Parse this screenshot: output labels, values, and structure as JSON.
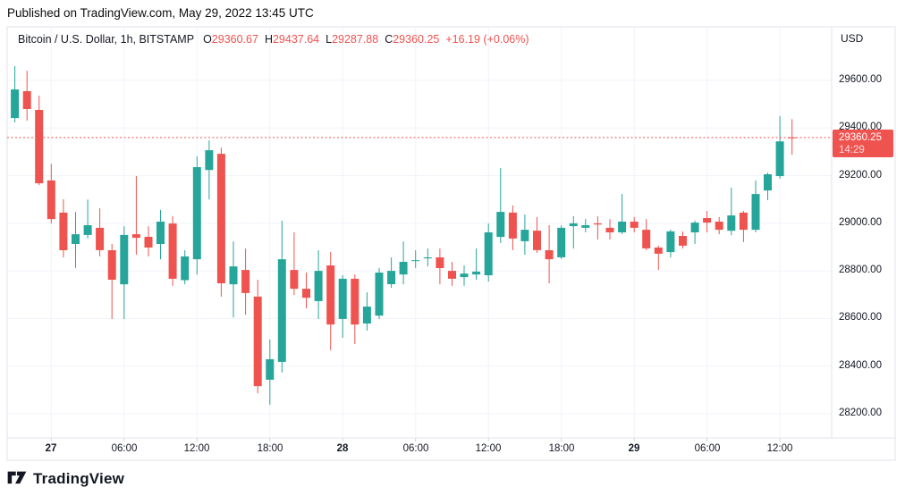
{
  "published_line": "Published on TradingView.com, May 29, 2022 13:45 UTC",
  "legend": {
    "symbol": "Bitcoin / U.S. Dollar, 1h, BITSTAMP",
    "o_label": "O",
    "o": "29360.67",
    "h_label": "H",
    "h": "29437.64",
    "l_label": "L",
    "l": "29287.88",
    "c_label": "C",
    "c": "29360.25",
    "change": "+16.19 (+0.06%)"
  },
  "price_axis": {
    "currency": "USD",
    "ticks": [
      {
        "value": 29600,
        "text": "29600.00"
      },
      {
        "value": 29400,
        "text": "29400.00"
      },
      {
        "value": 29200,
        "text": "29200.00"
      },
      {
        "value": 29000,
        "text": "29000.00"
      },
      {
        "value": 28800,
        "text": "28800.00"
      },
      {
        "value": 28600,
        "text": "28600.00"
      },
      {
        "value": 28400,
        "text": "28400.00"
      },
      {
        "value": 28200,
        "text": "28200.00"
      }
    ],
    "badge": {
      "price": "29360.25",
      "countdown": "14:29"
    }
  },
  "time_axis": {
    "ticks": [
      {
        "t": "2022-05-27T00:00",
        "text": "27",
        "bold": true
      },
      {
        "t": "2022-05-27T06:00",
        "text": "06:00",
        "bold": false
      },
      {
        "t": "2022-05-27T12:00",
        "text": "12:00",
        "bold": false
      },
      {
        "t": "2022-05-27T18:00",
        "text": "18:00",
        "bold": false
      },
      {
        "t": "2022-05-28T00:00",
        "text": "28",
        "bold": true
      },
      {
        "t": "2022-05-28T06:00",
        "text": "06:00",
        "bold": false
      },
      {
        "t": "2022-05-28T12:00",
        "text": "12:00",
        "bold": false
      },
      {
        "t": "2022-05-28T18:00",
        "text": "18:00",
        "bold": false
      },
      {
        "t": "2022-05-29T00:00",
        "text": "29",
        "bold": true
      },
      {
        "t": "2022-05-29T06:00",
        "text": "06:00",
        "bold": false
      },
      {
        "t": "2022-05-29T12:00",
        "text": "12:00",
        "bold": false
      }
    ]
  },
  "footer": {
    "brand": "TradingView"
  },
  "colors": {
    "up": "#26a69a",
    "down": "#ef5350",
    "accent": "#ef5350",
    "text": "#131722",
    "grid": "#f0f3fa",
    "border": "#e0e3eb",
    "tick": "#d1d4dc",
    "badge_bg": "#ef5350",
    "badge_text": "#ffffff"
  },
  "chart_data": {
    "type": "candlestick",
    "title": "Bitcoin / U.S. Dollar, 1h, BITSTAMP",
    "interval": "1h",
    "ylabel": "USD",
    "ylim": [
      28130,
      29720
    ],
    "grid": true,
    "current_price": 29360.25,
    "current_price_line": "dotted-red",
    "countdown": "14:29",
    "last_bar": {
      "open": 29360.67,
      "high": 29437.64,
      "low": 29287.88,
      "close": 29360.25,
      "change": "+16.19 (+0.06%)"
    },
    "candle_format": [
      "time",
      "open",
      "high",
      "low",
      "close"
    ],
    "candles": [
      [
        "2022-05-26T20:00",
        29450,
        29600,
        29440,
        29580
      ],
      [
        "2022-05-26T21:00",
        29442,
        29660,
        29424,
        29562
      ],
      [
        "2022-05-26T22:00",
        29555,
        29641,
        29431,
        29480
      ],
      [
        "2022-05-26T23:00",
        29476,
        29536,
        29161,
        29168
      ],
      [
        "2022-05-27T00:00",
        29180,
        29250,
        28999,
        29018
      ],
      [
        "2022-05-27T01:00",
        29045,
        29101,
        28857,
        28887
      ],
      [
        "2022-05-27T02:00",
        28913,
        29048,
        28812,
        28954
      ],
      [
        "2022-05-27T03:00",
        28951,
        29100,
        28936,
        28992
      ],
      [
        "2022-05-27T04:00",
        28981,
        29063,
        28861,
        28887
      ],
      [
        "2022-05-27T05:00",
        28887,
        28913,
        28598,
        28763
      ],
      [
        "2022-05-27T06:00",
        28744,
        28988,
        28598,
        28951
      ],
      [
        "2022-05-27T07:00",
        28954,
        29198,
        28868,
        28939
      ],
      [
        "2022-05-27T08:00",
        28943,
        28988,
        28861,
        28898
      ],
      [
        "2022-05-27T09:00",
        28913,
        29056,
        28849,
        29007
      ],
      [
        "2022-05-27T10:00",
        28999,
        29030,
        28737,
        28767
      ],
      [
        "2022-05-27T11:00",
        28761,
        28887,
        28744,
        28861
      ],
      [
        "2022-05-27T12:00",
        28849,
        29281,
        28785,
        29236
      ],
      [
        "2022-05-27T13:00",
        29224,
        29348,
        29100,
        29307
      ],
      [
        "2022-05-27T14:00",
        29292,
        29318,
        28692,
        28748
      ],
      [
        "2022-05-27T15:00",
        28744,
        28924,
        28605,
        28819
      ],
      [
        "2022-05-27T16:00",
        28804,
        28894,
        28616,
        28707
      ],
      [
        "2022-05-27T17:00",
        28692,
        28763,
        28286,
        28316
      ],
      [
        "2022-05-27T18:00",
        28343,
        28512,
        28238,
        28429
      ],
      [
        "2022-05-27T19:00",
        28418,
        29011,
        28373,
        28849
      ],
      [
        "2022-05-27T20:00",
        28804,
        28962,
        28699,
        28725
      ],
      [
        "2022-05-27T21:00",
        28725,
        28793,
        28643,
        28687
      ],
      [
        "2022-05-27T22:00",
        28673,
        28887,
        28598,
        28800
      ],
      [
        "2022-05-27T23:00",
        28823,
        28879,
        28466,
        28575
      ],
      [
        "2022-05-28T00:00",
        28598,
        28782,
        28519,
        28767
      ],
      [
        "2022-05-28T01:00",
        28767,
        28785,
        28493,
        28575
      ],
      [
        "2022-05-28T02:00",
        28579,
        28710,
        28549,
        28650
      ],
      [
        "2022-05-28T03:00",
        28612,
        28812,
        28598,
        28793
      ],
      [
        "2022-05-28T04:00",
        28744,
        28857,
        28729,
        28800
      ],
      [
        "2022-05-28T05:00",
        28785,
        28924,
        28744,
        28838
      ],
      [
        "2022-05-28T06:00",
        28842,
        28887,
        28812,
        28845
      ],
      [
        "2022-05-28T07:00",
        28853,
        28894,
        28819,
        28857
      ],
      [
        "2022-05-28T08:00",
        28857,
        28894,
        28744,
        28812
      ],
      [
        "2022-05-28T09:00",
        28800,
        28838,
        28737,
        28767
      ],
      [
        "2022-05-28T10:00",
        28774,
        28823,
        28737,
        28789
      ],
      [
        "2022-05-28T11:00",
        28785,
        28894,
        28763,
        28797
      ],
      [
        "2022-05-28T12:00",
        28782,
        28999,
        28755,
        28962
      ],
      [
        "2022-05-28T13:00",
        28943,
        29232,
        28917,
        29048
      ],
      [
        "2022-05-28T14:00",
        29045,
        29075,
        28887,
        28936
      ],
      [
        "2022-05-28T15:00",
        28925,
        29037,
        28868,
        28973
      ],
      [
        "2022-05-28T16:00",
        28969,
        29026,
        28876,
        28887
      ],
      [
        "2022-05-28T17:00",
        28887,
        28992,
        28748,
        28849
      ],
      [
        "2022-05-28T18:00",
        28857,
        28992,
        28850,
        28981
      ],
      [
        "2022-05-28T19:00",
        28988,
        29030,
        28894,
        29000
      ],
      [
        "2022-05-28T20:00",
        28981,
        29018,
        28962,
        28992
      ],
      [
        "2022-05-28T21:00",
        29000,
        29030,
        28932,
        28995
      ],
      [
        "2022-05-28T22:00",
        28981,
        29018,
        28932,
        28962
      ],
      [
        "2022-05-28T23:00",
        28962,
        29123,
        28954,
        29007
      ],
      [
        "2022-05-29T00:00",
        29007,
        29026,
        28962,
        28981
      ],
      [
        "2022-05-29T01:00",
        28973,
        29018,
        28887,
        28895
      ],
      [
        "2022-05-29T02:00",
        28898,
        28906,
        28804,
        28872
      ],
      [
        "2022-05-29T03:00",
        28879,
        28973,
        28857,
        28966
      ],
      [
        "2022-05-29T04:00",
        28947,
        28966,
        28894,
        28906
      ],
      [
        "2022-05-29T05:00",
        28962,
        29011,
        28913,
        29003
      ],
      [
        "2022-05-29T06:00",
        29022,
        29052,
        28962,
        29003
      ],
      [
        "2022-05-29T07:00",
        29007,
        29026,
        28954,
        28973
      ],
      [
        "2022-05-29T08:00",
        28969,
        29150,
        28950,
        29033
      ],
      [
        "2022-05-29T09:00",
        29045,
        29052,
        28921,
        28973
      ],
      [
        "2022-05-29T10:00",
        28973,
        29180,
        28962,
        29123
      ],
      [
        "2022-05-29T11:00",
        29138,
        29213,
        29097,
        29206
      ],
      [
        "2022-05-29T12:00",
        29198,
        29451,
        29187,
        29344
      ],
      [
        "2022-05-29T13:00",
        29360.67,
        29437.64,
        29287.88,
        29360.25
      ]
    ]
  }
}
